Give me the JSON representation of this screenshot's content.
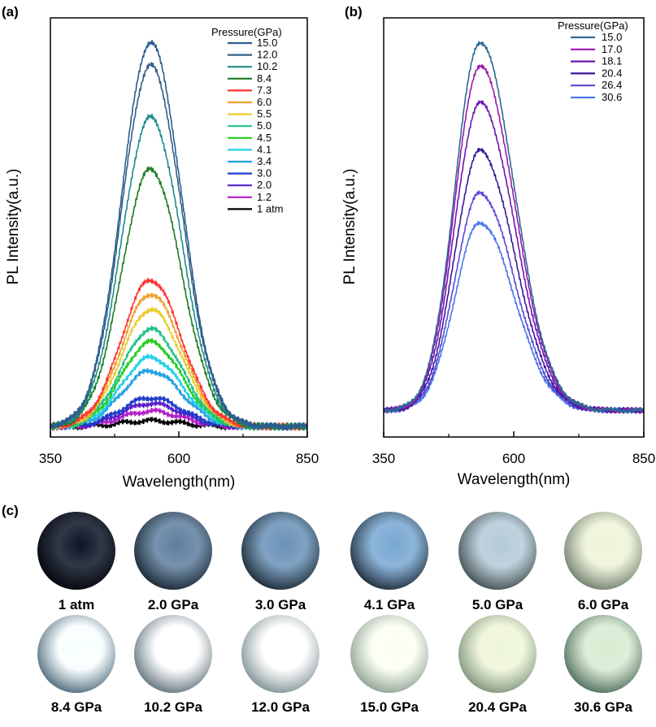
{
  "panels": {
    "a_label": "(a)",
    "b_label": "(b)",
    "c_label": "(c)"
  },
  "chart_data": [
    {
      "type": "line",
      "panel": "(a)",
      "xlabel": "Wavelength(nm)",
      "ylabel": "PL Intensity(a.u.)",
      "xlim": [
        350,
        850
      ],
      "x_ticks": [
        "350",
        "600",
        "850"
      ],
      "ylim": [
        0,
        1.03
      ],
      "legend_title": "Pressure(GPa)",
      "legend_position": "top-right",
      "grid": false,
      "peak_wavelength_nm": 545,
      "series": [
        {
          "name": "15.0",
          "color": "#2b5d8f",
          "peak": 1.0
        },
        {
          "name": "12.0",
          "color": "#355d86",
          "peak": 0.94
        },
        {
          "name": "10.2",
          "color": "#1e8b8b",
          "peak": 0.805
        },
        {
          "name": "8.4",
          "color": "#1e7a1e",
          "peak": 0.67
        },
        {
          "name": "7.3",
          "color": "#ff3333",
          "peak": 0.382
        },
        {
          "name": "6.0",
          "color": "#f0a030",
          "peak": 0.345
        },
        {
          "name": "5.5",
          "color": "#e8cc30",
          "peak": 0.305
        },
        {
          "name": "5.0",
          "color": "#22c08a",
          "peak": 0.253
        },
        {
          "name": "4.5",
          "color": "#22cc22",
          "peak": 0.22
        },
        {
          "name": "4.1",
          "color": "#22d0e8",
          "peak": 0.18
        },
        {
          "name": "3.4",
          "color": "#22a0e0",
          "peak": 0.145
        },
        {
          "name": "3.0",
          "color": "#1e3cc8",
          "peak": 0.075
        },
        {
          "name": "2.0",
          "color": "#5a1ec8",
          "peak": 0.06
        },
        {
          "name": "1.2",
          "color": "#b41ec8",
          "peak": 0.04
        },
        {
          "name": "1 atm",
          "color": "#000000",
          "peak": 0.015
        }
      ]
    },
    {
      "type": "line",
      "panel": "(b)",
      "xlabel": "Wavelength(nm)",
      "ylabel": "PL Intensity(a.u.)",
      "xlim": [
        350,
        850
      ],
      "x_ticks": [
        "350",
        "600",
        "850"
      ],
      "ylim": [
        0,
        1.03
      ],
      "legend_title": "Pressure(GPa)",
      "legend_position": "top-right",
      "grid": false,
      "peak_wavelength_nm": 535,
      "series": [
        {
          "name": "15.0",
          "color": "#2b6a93",
          "peak": 1.0
        },
        {
          "name": "17.0",
          "color": "#9a18b0",
          "peak": 0.935
        },
        {
          "name": "18.1",
          "color": "#6a18b0",
          "peak": 0.835
        },
        {
          "name": "20.4",
          "color": "#3a1898",
          "peak": 0.705
        },
        {
          "name": "26.4",
          "color": "#5a48d8",
          "peak": 0.59
        },
        {
          "name": "30.6",
          "color": "#4a78e8",
          "peak": 0.51
        }
      ]
    }
  ],
  "photos": [
    {
      "caption": "1 atm",
      "center": "#0c1526",
      "edge": "#02040a"
    },
    {
      "caption": "2.0 GPa",
      "center": "#5f7f9e",
      "edge": "#16232e"
    },
    {
      "caption": "3.0 GPa",
      "center": "#6a92b8",
      "edge": "#18252f"
    },
    {
      "caption": "4.1 GPa",
      "center": "#78a8d2",
      "edge": "#1a2733"
    },
    {
      "caption": "5.0 GPa",
      "center": "#b4cad8",
      "edge": "#3c4a48"
    },
    {
      "caption": "6.0 GPa",
      "center": "#eef4d8",
      "edge": "#6a7a68"
    },
    {
      "caption": "8.4 GPa",
      "center": "#f8ffff",
      "edge": "#486478"
    },
    {
      "caption": "10.2 GPa",
      "center": "#ffffff",
      "edge": "#5a6e78"
    },
    {
      "caption": "12.0 GPa",
      "center": "#ffffff",
      "edge": "#7a8e90"
    },
    {
      "caption": "15.0 GPa",
      "center": "#fbfff2",
      "edge": "#8a9e90"
    },
    {
      "caption": "20.4 GPa",
      "center": "#eef6d8",
      "edge": "#7a9078"
    },
    {
      "caption": "30.6 GPa",
      "center": "#d8ecd2",
      "edge": "#4a6858"
    }
  ]
}
